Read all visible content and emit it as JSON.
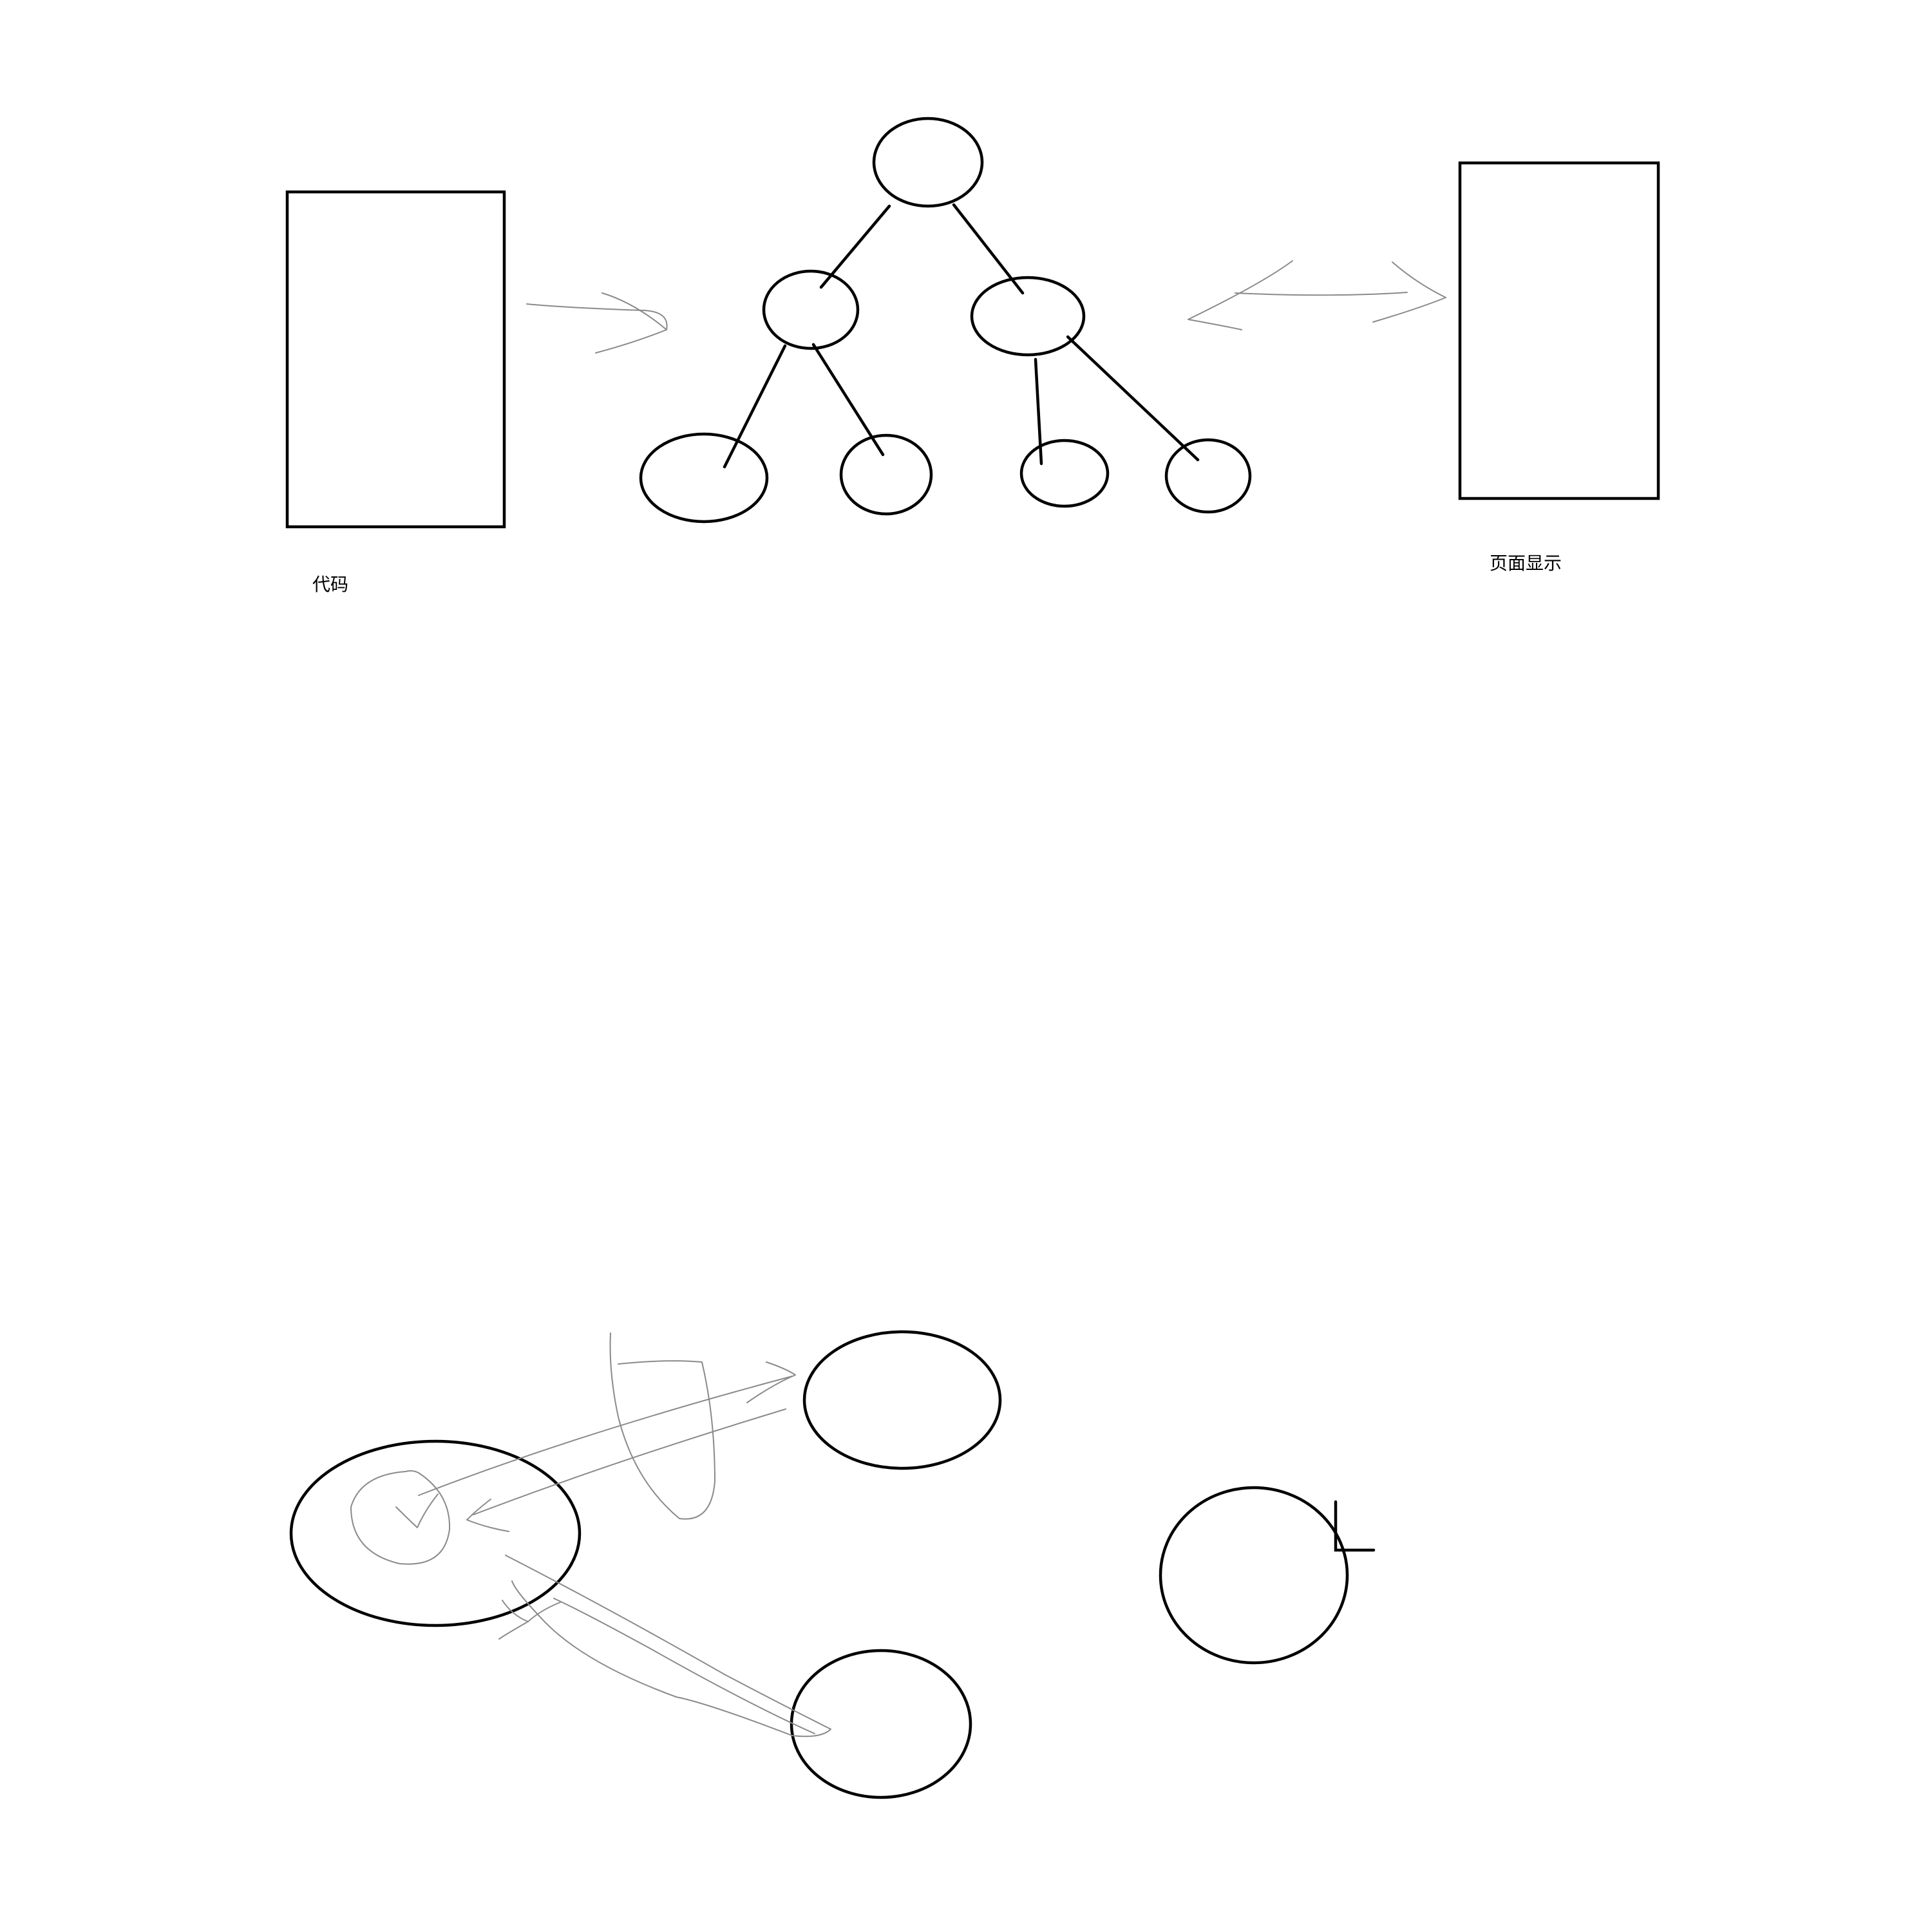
{
  "labels": {
    "code": "代码",
    "page_display": "页面显示"
  },
  "colors": {
    "stroke": "#000000",
    "sketch": "#8a8a8a",
    "background": "#ffffff"
  }
}
